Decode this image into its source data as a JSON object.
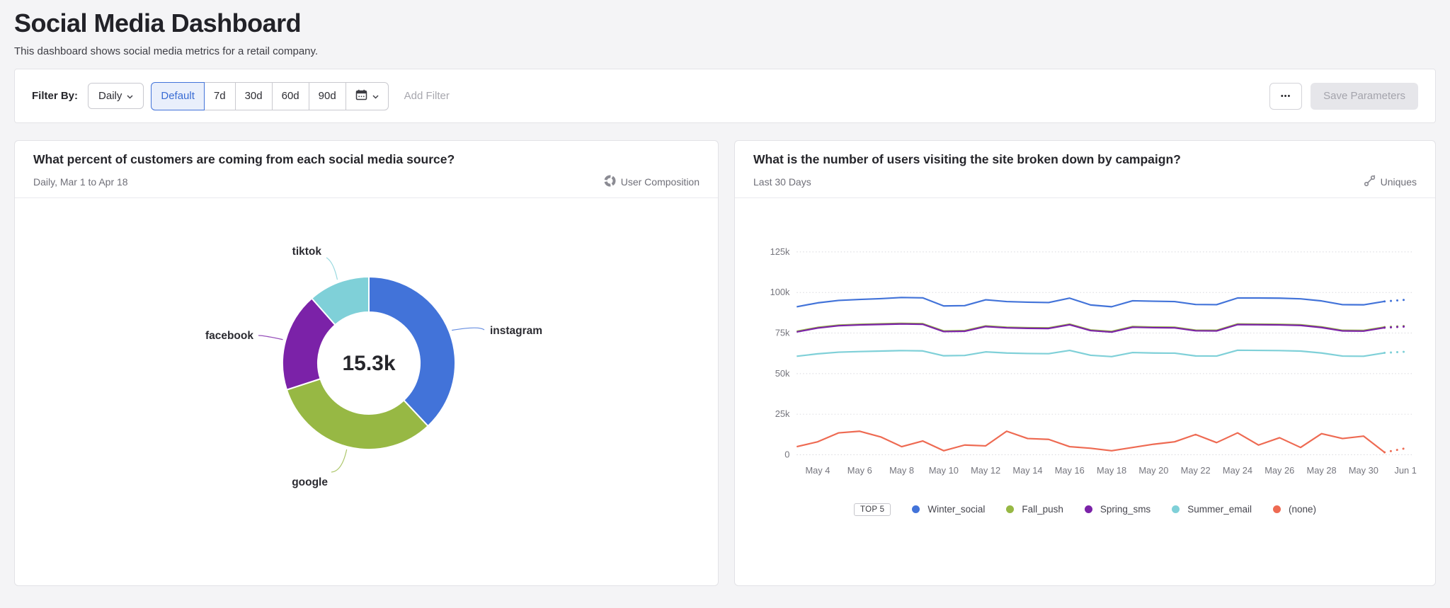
{
  "page": {
    "title": "Social Media Dashboard",
    "subtitle": "This dashboard shows social media metrics for a retail company."
  },
  "filter_bar": {
    "label": "Filter By:",
    "granularity": "Daily",
    "range_options": [
      "Default",
      "7d",
      "30d",
      "60d",
      "90d"
    ],
    "active_range": "Default",
    "add_filter_label": "Add Filter",
    "more_label": "•••",
    "save_label": "Save Parameters",
    "accent_color": "#4273d9"
  },
  "cards": {
    "donut": {
      "title": "What percent of customers are coming from each social media source?",
      "subtitle": "Daily, Mar 1 to Apr 18",
      "widget_type": "User Composition",
      "center_value": "15.3k"
    },
    "lines": {
      "title": "What is the number of users visiting the site broken down by campaign?",
      "subtitle": "Last 30 Days",
      "widget_type": "Uniques",
      "legend_badge": "TOP 5"
    }
  },
  "chart_data": [
    {
      "type": "pie",
      "title": "What percent of customers are coming from each social media source?",
      "total_label": "15.3k",
      "slices": [
        {
          "label": "instagram",
          "percent": 38.0,
          "color": "#4273d9"
        },
        {
          "label": "google",
          "percent": 32.0,
          "color": "#97b844"
        },
        {
          "label": "facebook",
          "percent": 18.5,
          "color": "#7b22a8"
        },
        {
          "label": "tiktok",
          "percent": 11.5,
          "color": "#7fd0d8"
        }
      ],
      "legend_position": "callout-labels"
    },
    {
      "type": "line",
      "title": "What is the number of users visiting the site broken down by campaign?",
      "x": [
        "May 3",
        "May 4",
        "May 5",
        "May 6",
        "May 7",
        "May 8",
        "May 9",
        "May 10",
        "May 11",
        "May 12",
        "May 13",
        "May 14",
        "May 15",
        "May 16",
        "May 17",
        "May 18",
        "May 19",
        "May 20",
        "May 21",
        "May 22",
        "May 23",
        "May 24",
        "May 25",
        "May 26",
        "May 27",
        "May 28",
        "May 29",
        "May 30",
        "May 31",
        "Jun 1"
      ],
      "x_tick_labels": [
        "May 4",
        "May 6",
        "May 8",
        "May 10",
        "May 12",
        "May 14",
        "May 16",
        "May 18",
        "May 20",
        "May 22",
        "May 24",
        "May 26",
        "May 28",
        "May 30",
        "Jun 1"
      ],
      "values_unit": "thousands",
      "ylim": [
        0,
        125000
      ],
      "y_tick_labels": [
        "0",
        "25k",
        "50k",
        "75k",
        "100k",
        "125k"
      ],
      "grid": "dotted-horizontal",
      "incomplete_tail_points": 1,
      "legend_position": "bottom",
      "series": [
        {
          "name": "Winter_social",
          "color": "#4273d9",
          "values": [
            91.2,
            93.6,
            95.1,
            95.7,
            96.2,
            96.9,
            96.7,
            91.7,
            91.9,
            95.5,
            94.4,
            94.0,
            93.8,
            96.5,
            92.3,
            91.2,
            94.9,
            94.6,
            94.4,
            92.6,
            92.5,
            96.6,
            96.6,
            96.5,
            96.1,
            94.8,
            92.5,
            92.4,
            94.5,
            95.5
          ]
        },
        {
          "name": "Fall_push",
          "color": "#97b844",
          "values": [
            76.1,
            78.5,
            79.9,
            80.4,
            80.7,
            81.0,
            80.8,
            76.3,
            76.5,
            79.4,
            78.6,
            78.3,
            78.2,
            80.5,
            76.9,
            76.0,
            79.0,
            78.7,
            78.6,
            76.8,
            76.7,
            80.6,
            80.5,
            80.4,
            80.1,
            78.8,
            76.7,
            76.6,
            78.7,
            79.4
          ]
        },
        {
          "name": "Spring_sms",
          "color": "#7b22a8",
          "values": [
            75.7,
            78.1,
            79.5,
            80.0,
            80.3,
            80.6,
            80.4,
            75.9,
            76.1,
            79.0,
            78.2,
            77.9,
            77.8,
            80.1,
            76.5,
            75.6,
            78.6,
            78.3,
            78.2,
            76.4,
            76.3,
            80.2,
            80.1,
            80.0,
            79.7,
            78.4,
            76.3,
            76.2,
            78.3,
            79.0
          ]
        },
        {
          "name": "Summer_email",
          "color": "#7fd0d8",
          "values": [
            60.7,
            62.2,
            63.2,
            63.6,
            63.9,
            64.2,
            64.0,
            61.0,
            61.2,
            63.4,
            62.7,
            62.4,
            62.3,
            64.3,
            61.3,
            60.5,
            63.0,
            62.7,
            62.6,
            60.9,
            60.8,
            64.4,
            64.3,
            64.2,
            63.9,
            62.7,
            60.8,
            60.7,
            62.8,
            63.5
          ]
        },
        {
          "name": "(none)",
          "color": "#ee6a52",
          "values": [
            5,
            8,
            13.5,
            14.5,
            11,
            5,
            8.5,
            2.5,
            6,
            5.5,
            14.5,
            10,
            9.5,
            5,
            4,
            2.5,
            4.5,
            6.5,
            8,
            12.5,
            7.5,
            13.5,
            6,
            10.5,
            4.5,
            13,
            10,
            11.5,
            1.5,
            4
          ]
        }
      ]
    }
  ]
}
